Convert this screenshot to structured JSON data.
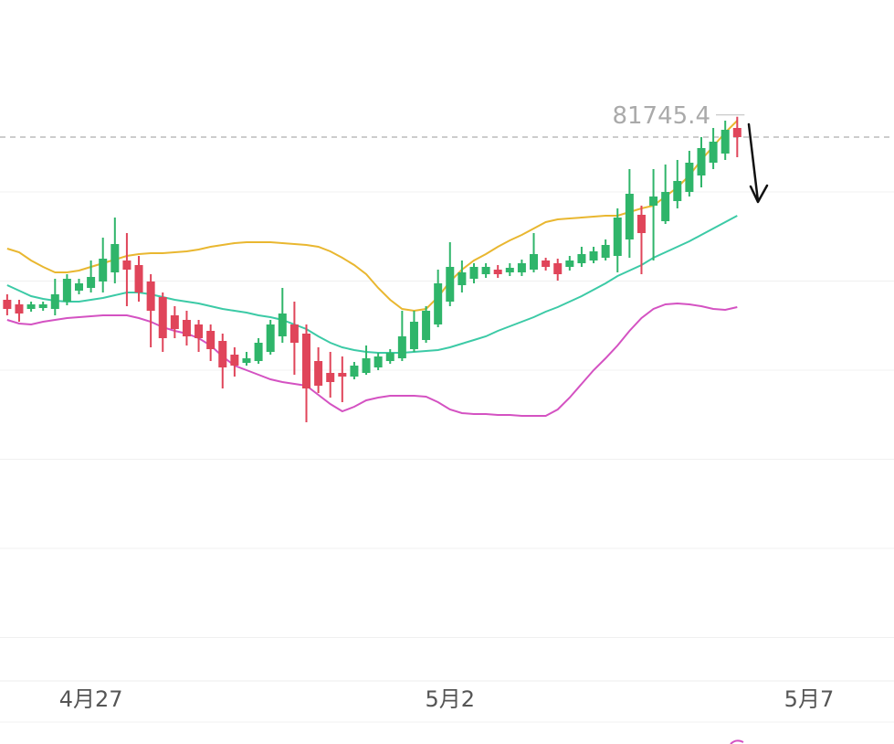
{
  "chart_data": {
    "type": "candlestick",
    "categories": [
      null,
      null,
      null,
      null,
      null,
      null,
      null,
      null,
      null,
      null,
      null,
      null,
      null,
      null,
      null,
      null,
      null,
      null,
      null,
      null,
      null,
      null,
      null,
      null,
      null,
      null,
      null,
      null,
      null,
      null,
      null,
      null,
      null,
      null,
      null,
      null,
      null,
      null,
      null,
      null,
      null,
      null,
      null,
      null,
      null,
      null,
      null,
      null,
      null,
      null,
      null,
      null,
      null,
      null,
      null,
      null,
      null,
      null,
      null,
      null,
      null,
      null
    ],
    "open": [
      77740,
      77640,
      77540,
      77560,
      77540,
      77700,
      77940,
      78000,
      78140,
      78340,
      78600,
      78500,
      78140,
      77800,
      77400,
      77300,
      77200,
      77060,
      76840,
      76540,
      76360,
      76400,
      76600,
      76940,
      77200,
      77000,
      76400,
      76140,
      76140,
      76060,
      76140,
      76260,
      76400,
      76460,
      76660,
      76860,
      77200,
      77700,
      78060,
      78200,
      78300,
      78400,
      78340,
      78340,
      78400,
      78600,
      78540,
      78460,
      78540,
      78600,
      78660,
      78700,
      79060,
      79600,
      79800,
      79460,
      79900,
      80100,
      80460,
      80740,
      80940,
      81500
    ],
    "high": [
      77860,
      77740,
      77700,
      77700,
      78200,
      78300,
      78200,
      78600,
      79100,
      79540,
      79200,
      78700,
      78300,
      77900,
      77600,
      77500,
      77300,
      77200,
      77000,
      76700,
      76600,
      76900,
      77300,
      78000,
      77700,
      77200,
      76700,
      76600,
      76500,
      76380,
      76740,
      76580,
      76660,
      77500,
      77500,
      77600,
      78400,
      79000,
      78600,
      78540,
      78540,
      78500,
      78540,
      78620,
      79200,
      78660,
      78640,
      78700,
      78900,
      78900,
      79060,
      79740,
      80600,
      79800,
      80600,
      80700,
      80800,
      81000,
      81300,
      81500,
      81660,
      81745.4
    ],
    "low": [
      77400,
      77260,
      77480,
      77500,
      77400,
      77620,
      77860,
      77900,
      77900,
      78100,
      77600,
      77700,
      76700,
      76600,
      76900,
      76740,
      76600,
      76400,
      75800,
      76060,
      76300,
      76340,
      76540,
      76800,
      76100,
      75060,
      75700,
      75600,
      75500,
      76000,
      76100,
      76200,
      76340,
      76400,
      76600,
      76800,
      77140,
      77600,
      77900,
      78100,
      78220,
      78220,
      78260,
      78260,
      78340,
      78380,
      78160,
      78380,
      78460,
      78540,
      78600,
      78340,
      78660,
      78300,
      78600,
      79400,
      79740,
      80000,
      80200,
      80600,
      80800,
      80860
    ],
    "close": [
      77540,
      77440,
      77640,
      77640,
      77860,
      78200,
      78100,
      78240,
      78640,
      78960,
      78400,
      77900,
      77500,
      76900,
      77100,
      76940,
      76900,
      76660,
      76260,
      76300,
      76460,
      76800,
      77200,
      77440,
      76800,
      75800,
      75860,
      75940,
      76060,
      76300,
      76460,
      76500,
      76580,
      76940,
      77260,
      77500,
      78100,
      78460,
      78340,
      78460,
      78460,
      78300,
      78440,
      78540,
      78740,
      78460,
      78300,
      78600,
      78740,
      78800,
      78940,
      79540,
      80060,
      79200,
      80000,
      80100,
      80340,
      80740,
      81060,
      81200,
      81460,
      81300
    ],
    "up_color": "#2fb56a",
    "down_color": "#e0455a",
    "bands": [
      {
        "color": "#e9b730",
        "values": [
          78860,
          78780,
          78600,
          78460,
          78340,
          78340,
          78380,
          78460,
          78540,
          78620,
          78700,
          78740,
          78760,
          78760,
          78780,
          78800,
          78840,
          78900,
          78940,
          78980,
          79000,
          79000,
          79000,
          78980,
          78960,
          78940,
          78900,
          78800,
          78660,
          78500,
          78300,
          78000,
          77740,
          77540,
          77500,
          77540,
          77800,
          78140,
          78400,
          78600,
          78740,
          78900,
          79040,
          79160,
          79300,
          79440,
          79500,
          79520,
          79540,
          79560,
          79580,
          79580,
          79660,
          79740,
          79800,
          80000,
          80200,
          80460,
          80800,
          81100,
          81400,
          81660
        ]
      },
      {
        "color": "#3ccaa6",
        "values": [
          78060,
          77940,
          77820,
          77760,
          77720,
          77700,
          77700,
          77740,
          77780,
          77840,
          77900,
          77900,
          77860,
          77800,
          77740,
          77700,
          77660,
          77600,
          77540,
          77500,
          77460,
          77400,
          77360,
          77300,
          77200,
          77100,
          76940,
          76800,
          76700,
          76640,
          76600,
          76580,
          76580,
          76580,
          76600,
          76620,
          76640,
          76700,
          76780,
          76860,
          76940,
          77060,
          77160,
          77260,
          77360,
          77480,
          77580,
          77700,
          77820,
          77960,
          78100,
          78260,
          78380,
          78500,
          78660,
          78780,
          78900,
          79020,
          79160,
          79300,
          79440,
          79580
        ]
      },
      {
        "color": "#d452c2",
        "values": [
          77300,
          77220,
          77200,
          77260,
          77300,
          77340,
          77360,
          77380,
          77400,
          77400,
          77400,
          77340,
          77260,
          77140,
          77060,
          77000,
          76900,
          76740,
          76500,
          76300,
          76200,
          76100,
          76000,
          75940,
          75900,
          75860,
          75660,
          75460,
          75300,
          75400,
          75540,
          75600,
          75640,
          75640,
          75640,
          75620,
          75500,
          75340,
          75260,
          75240,
          75240,
          75220,
          75220,
          75200,
          75200,
          75200,
          75340,
          75600,
          75900,
          76200,
          76460,
          76740,
          77060,
          77340,
          77540,
          77640,
          77660,
          77640,
          77600,
          77540,
          77520,
          77580
        ]
      }
    ],
    "xlim": [
      -0.6,
      74.1
    ],
    "xticks": [
      {
        "value": 7,
        "label": "4月27"
      },
      {
        "value": 37,
        "label": "5月2"
      },
      {
        "value": 67,
        "label": "5月7"
      }
    ],
    "ylim": [
      69400,
      84300
    ],
    "yticks": [
      80100,
      78150,
      76200,
      74250,
      72300,
      70350
    ],
    "grid": true
  }
}
